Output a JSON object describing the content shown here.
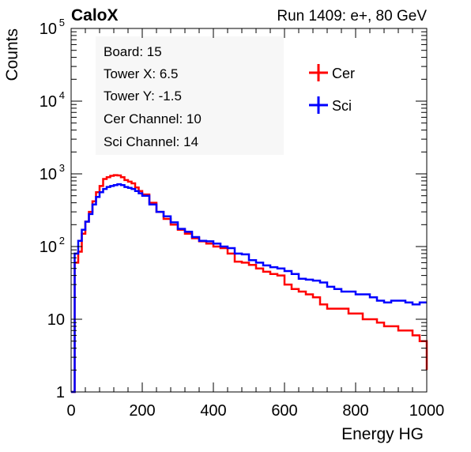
{
  "header": {
    "brand": "CaloX",
    "run_label": "Run 1409: e+, 80 GeV"
  },
  "info_box": {
    "lines": [
      "Board: 15",
      "Tower X: 6.5",
      "Tower Y: -1.5",
      "Cer Channel: 10",
      "Sci Channel: 14"
    ]
  },
  "colors": {
    "cer": "#ff0000",
    "sci": "#0000ff"
  },
  "chart_data": {
    "type": "line",
    "title": "",
    "xlabel": "Energy HG",
    "ylabel": "Counts",
    "xlim": [
      0,
      1000
    ],
    "ylim": [
      1,
      100000
    ],
    "y_scale": "log",
    "grid": false,
    "legend_position": "top-right",
    "x_ticks": [
      0,
      200,
      400,
      600,
      800,
      1000
    ],
    "x_tick_labels": [
      "0",
      "200",
      "400",
      "600",
      "800",
      "1000"
    ],
    "y_tick_labels": [
      {
        "value": 1,
        "base": "1",
        "exp": ""
      },
      {
        "value": 10,
        "base": "10",
        "exp": ""
      },
      {
        "value": 100,
        "base": "10",
        "exp": "2"
      },
      {
        "value": 1000,
        "base": "10",
        "exp": "3"
      },
      {
        "value": 10000,
        "base": "10",
        "exp": "4"
      },
      {
        "value": 100000,
        "base": "10",
        "exp": "5"
      }
    ],
    "x": [
      0,
      10,
      20,
      30,
      40,
      50,
      60,
      70,
      80,
      90,
      100,
      110,
      120,
      130,
      140,
      150,
      160,
      170,
      180,
      190,
      200,
      220,
      240,
      260,
      280,
      300,
      320,
      340,
      360,
      380,
      400,
      420,
      440,
      460,
      480,
      500,
      520,
      540,
      560,
      580,
      600,
      620,
      640,
      660,
      680,
      700,
      720,
      740,
      760,
      780,
      800,
      820,
      840,
      860,
      880,
      900,
      920,
      940,
      960,
      980,
      1000
    ],
    "series": [
      {
        "name": "Cer",
        "values": [
          1,
          60,
          85,
          150,
          220,
          300,
          420,
          560,
          680,
          850,
          900,
          940,
          960,
          950,
          900,
          820,
          780,
          740,
          650,
          580,
          520,
          400,
          300,
          240,
          200,
          170,
          150,
          130,
          118,
          110,
          100,
          95,
          80,
          62,
          60,
          56,
          50,
          45,
          42,
          40,
          30,
          26,
          24,
          22,
          20,
          16,
          14,
          14,
          14,
          12,
          12,
          10,
          10,
          9,
          8,
          8,
          7,
          7,
          6,
          5,
          2
        ]
      },
      {
        "name": "Sci",
        "values": [
          1,
          80,
          120,
          170,
          220,
          280,
          380,
          480,
          560,
          620,
          660,
          680,
          700,
          720,
          700,
          660,
          640,
          620,
          580,
          540,
          500,
          380,
          300,
          260,
          215,
          175,
          160,
          135,
          120,
          118,
          110,
          100,
          95,
          80,
          78,
          65,
          60,
          55,
          52,
          50,
          46,
          42,
          36,
          35,
          34,
          32,
          28,
          26,
          24,
          24,
          22,
          22,
          20,
          18,
          17,
          18,
          18,
          17,
          16,
          17,
          17
        ]
      }
    ]
  }
}
